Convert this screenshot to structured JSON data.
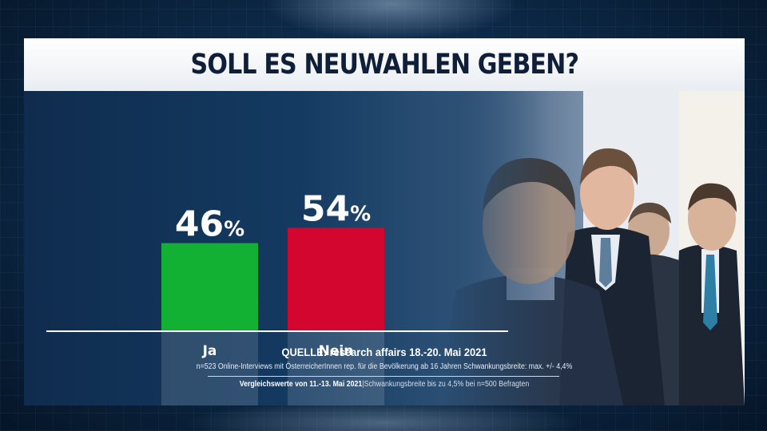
{
  "title": "SOLL ES NEUWAHLEN GEBEN?",
  "chart_data": {
    "type": "bar",
    "categories": [
      "Ja",
      "Nein"
    ],
    "values": [
      46,
      54
    ],
    "value_labels": [
      "46%",
      "54%"
    ],
    "value_numbers": [
      "46",
      "54"
    ],
    "unit": "%",
    "colors": [
      "#13b133",
      "#d3062f"
    ],
    "grid": false,
    "legend": "none"
  },
  "source": {
    "title": "QUELLE: research affairs 18.-20. Mai 2021",
    "detail": "n=523 Online-Interviews mit ÖsterreicherInnen rep. für die Bevölkerung ab 16 Jahren  Schwankungsbreite: max. +/- 4,4%",
    "compare_label": "Vergleichswerte von  11.-13. Mai 2021",
    "compare_note": "Schwankungsbreite bis zu 4,5% bei n=500 Befragten"
  }
}
